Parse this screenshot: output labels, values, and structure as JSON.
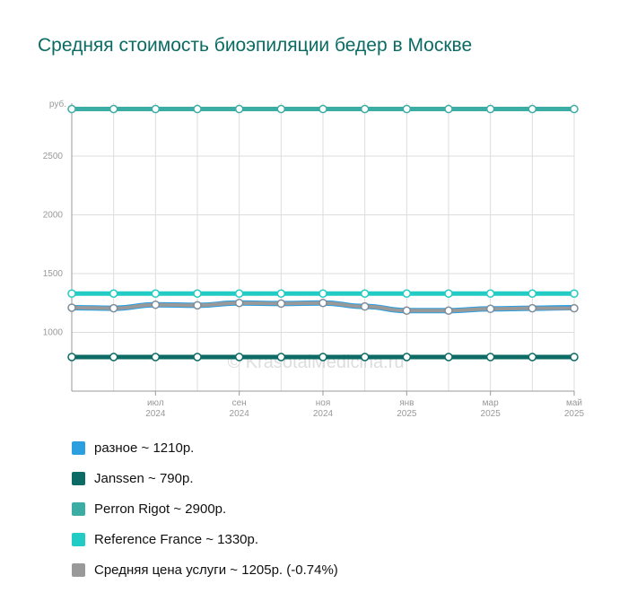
{
  "title": "Средняя стоимость биоэпиляции бедер в Москве",
  "watermark": "© KrasotaiMedicina.ru",
  "chart_data": {
    "type": "line",
    "ylabel": "руб.",
    "ylim": [
      500,
      2950
    ],
    "yticks": [
      1000,
      1500,
      2000,
      2500
    ],
    "x": [
      "2024-05",
      "2024-06",
      "2024-07",
      "2024-08",
      "2024-09",
      "2024-10",
      "2024-11",
      "2024-12",
      "2025-01",
      "2025-02",
      "2025-03",
      "2025-04",
      "2025-05"
    ],
    "xticks": [
      {
        "x": "2024-07",
        "month": "июл",
        "year": "2024"
      },
      {
        "x": "2024-09",
        "month": "сен",
        "year": "2024"
      },
      {
        "x": "2024-11",
        "month": "ноя",
        "year": "2024"
      },
      {
        "x": "2025-01",
        "month": "янв",
        "year": "2025"
      },
      {
        "x": "2025-03",
        "month": "мар",
        "year": "2025"
      },
      {
        "x": "2025-05",
        "month": "май",
        "year": "2025"
      }
    ],
    "grid": true,
    "legend_position": "bottom",
    "series": [
      {
        "name": "разное",
        "color": "#2b9fe0",
        "values": [
          1210,
          1205,
          1235,
          1230,
          1250,
          1245,
          1250,
          1220,
          1185,
          1185,
          1200,
          1205,
          1210
        ]
      },
      {
        "name": "Janssen",
        "color": "#0c6b64",
        "values": [
          790,
          790,
          790,
          790,
          790,
          790,
          790,
          790,
          790,
          790,
          790,
          790,
          790
        ]
      },
      {
        "name": "Perron Rigot",
        "color": "#3bada5",
        "values": [
          2900,
          2900,
          2900,
          2900,
          2900,
          2900,
          2900,
          2900,
          2900,
          2900,
          2900,
          2900,
          2900
        ]
      },
      {
        "name": "Reference France",
        "color": "#22cbc3",
        "values": [
          1330,
          1330,
          1330,
          1330,
          1330,
          1330,
          1330,
          1330,
          1330,
          1330,
          1330,
          1330,
          1330
        ]
      },
      {
        "name": "Средняя цена услуги",
        "color": "#999999",
        "values": [
          1210,
          1205,
          1235,
          1230,
          1250,
          1245,
          1250,
          1220,
          1185,
          1185,
          1200,
          1205,
          1205
        ]
      }
    ]
  },
  "legend": [
    {
      "text": "разное ~ 1210р.",
      "color": "#2b9fe0"
    },
    {
      "text": "Janssen ~ 790р.",
      "color": "#0c6b64"
    },
    {
      "text": "Perron Rigot ~ 2900р.",
      "color": "#3bada5"
    },
    {
      "text": "Reference France ~ 1330р.",
      "color": "#22cbc3"
    },
    {
      "text": "Средняя цена услуги ~ 1205р. (-0.74%)",
      "color": "#999999"
    }
  ]
}
